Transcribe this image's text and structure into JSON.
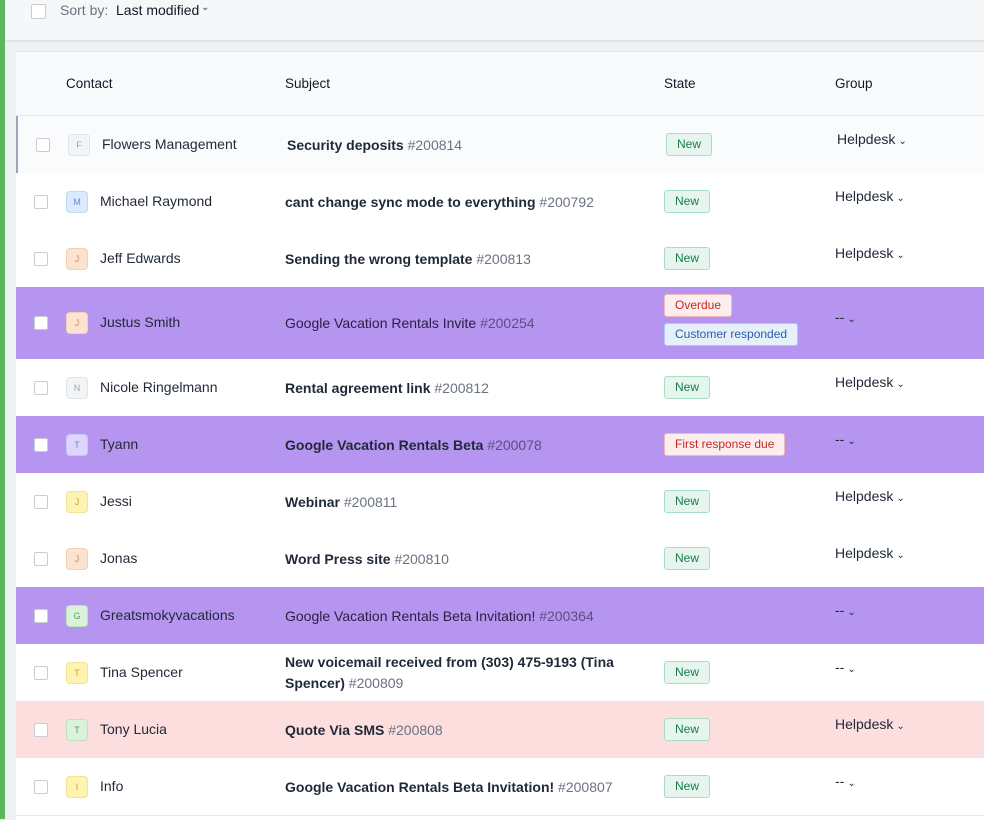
{
  "toolbar": {
    "sort_label": "Sort by:",
    "sort_value": "Last modified",
    "chevron": "⌄"
  },
  "columns": {
    "contact": "Contact",
    "subject": "Subject",
    "state": "State",
    "group": "Group"
  },
  "rows": [
    {
      "contact": "Flowers Management",
      "initial": "F",
      "avatar_bg": "#f3f4f6",
      "avatar_fg": "#9ca3af",
      "subject": "Security deposits",
      "number": "#200814",
      "bold": true,
      "badges": [
        {
          "text": "New",
          "type": "new"
        }
      ],
      "group": "Helpdesk",
      "highlight": "hover"
    },
    {
      "contact": "Michael Raymond",
      "initial": "M",
      "avatar_bg": "#dbeafe",
      "avatar_fg": "#6b8fd6",
      "subject": "cant change sync mode to everything",
      "number": "#200792",
      "bold": true,
      "badges": [
        {
          "text": "New",
          "type": "new"
        }
      ],
      "group": "Helpdesk",
      "highlight": ""
    },
    {
      "contact": "Jeff Edwards",
      "initial": "J",
      "avatar_bg": "#fde2cf",
      "avatar_fg": "#d08a5e",
      "subject": "Sending the wrong template",
      "number": "#200813",
      "bold": true,
      "badges": [
        {
          "text": "New",
          "type": "new"
        }
      ],
      "group": "Helpdesk",
      "highlight": ""
    },
    {
      "contact": "Justus Smith",
      "initial": "J",
      "avatar_bg": "#fde2cf",
      "avatar_fg": "#d08a5e",
      "subject": "Google Vacation Rentals Invite",
      "number": "#200254",
      "bold": false,
      "badges": [
        {
          "text": "Overdue",
          "type": "over"
        },
        {
          "text": "Customer responded",
          "type": "cust"
        }
      ],
      "group": "--",
      "highlight": "purple"
    },
    {
      "contact": "Nicole Ringelmann",
      "initial": "N",
      "avatar_bg": "#f3f4f6",
      "avatar_fg": "#9ca3af",
      "subject": "Rental agreement link",
      "number": "#200812",
      "bold": true,
      "badges": [
        {
          "text": "New",
          "type": "new"
        }
      ],
      "group": "Helpdesk",
      "highlight": ""
    },
    {
      "contact": "Tyann",
      "initial": "T",
      "avatar_bg": "#ddd6fe",
      "avatar_fg": "#8b7bd0",
      "subject": "Google Vacation Rentals Beta",
      "number": "#200078",
      "bold": true,
      "badges": [
        {
          "text": "First response due",
          "type": "over"
        }
      ],
      "group": "--",
      "highlight": "purple"
    },
    {
      "contact": "Jessi",
      "initial": "J",
      "avatar_bg": "#fef3b0",
      "avatar_fg": "#c9a227",
      "subject": "Webinar",
      "number": "#200811",
      "bold": true,
      "badges": [
        {
          "text": "New",
          "type": "new"
        }
      ],
      "group": "Helpdesk",
      "highlight": ""
    },
    {
      "contact": "Jonas",
      "initial": "J",
      "avatar_bg": "#fde2cf",
      "avatar_fg": "#d08a5e",
      "subject": "Word Press site",
      "number": "#200810",
      "bold": true,
      "badges": [
        {
          "text": "New",
          "type": "new"
        }
      ],
      "group": "Helpdesk",
      "highlight": ""
    },
    {
      "contact": "Greatsmokyvacations",
      "initial": "G",
      "avatar_bg": "#d9f2d9",
      "avatar_fg": "#5aa55a",
      "subject": "Google Vacation Rentals Beta Invitation!",
      "number": "#200364",
      "bold": false,
      "badges": [],
      "group": "--",
      "highlight": "purple"
    },
    {
      "contact": "Tina Spencer",
      "initial": "T",
      "avatar_bg": "#fef3b0",
      "avatar_fg": "#c9a227",
      "subject": "New voicemail received from (303) 475-9193 (Tina Spencer)",
      "number": "#200809",
      "bold": true,
      "badges": [
        {
          "text": "New",
          "type": "new"
        }
      ],
      "group": "--",
      "highlight": ""
    },
    {
      "contact": "Tony Lucia",
      "initial": "T",
      "avatar_bg": "#d9f2d9",
      "avatar_fg": "#5aa55a",
      "subject": "Quote Via SMS",
      "number": "#200808",
      "bold": true,
      "badges": [
        {
          "text": "New",
          "type": "new"
        }
      ],
      "group": "Helpdesk",
      "highlight": "pink"
    },
    {
      "contact": "Info",
      "initial": "I",
      "avatar_bg": "#fef3b0",
      "avatar_fg": "#c9a227",
      "subject": "Google Vacation Rentals Beta Invitation!",
      "number": "#200807",
      "bold": true,
      "badges": [
        {
          "text": "New",
          "type": "new"
        }
      ],
      "group": "--",
      "highlight": ""
    }
  ]
}
